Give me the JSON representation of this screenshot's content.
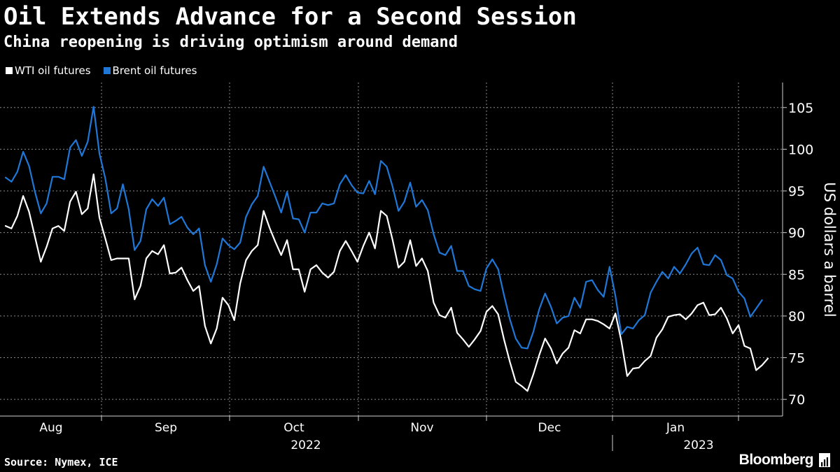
{
  "title": "Oil Extends Advance for a Second Session",
  "subtitle": "China reopening is driving optimism around demand",
  "colors": {
    "background": "#000000",
    "wti": "#ffffff",
    "brent": "#1f78d8",
    "grid": "#8a8a8a"
  },
  "footer": {
    "source": "Source: Nymex, ICE",
    "brand": "Bloomberg"
  },
  "chart_data": {
    "type": "line",
    "title": "Oil Extends Advance for a Second Session",
    "subtitle": "China reopening is driving optimism around demand",
    "xlabel": "",
    "ylabel": "US dollars a barrel",
    "ylim": [
      68,
      108
    ],
    "yticks": [
      70,
      75,
      80,
      85,
      90,
      95,
      100,
      105
    ],
    "grid": true,
    "legend_position": "top-left",
    "x_month_labels": [
      "Aug",
      "Sep",
      "Oct",
      "Nov",
      "Dec",
      "Jan"
    ],
    "x_year_labels": [
      "2022",
      "2023"
    ],
    "n_points": 126,
    "x_period": "2022-07-25 to 2023-01-19, daily trading sessions",
    "series": [
      {
        "name": "WTI oil futures",
        "color": "#ffffff",
        "values": [
          90.8,
          90.5,
          92.0,
          94.4,
          92.5,
          89.5,
          86.5,
          88.3,
          90.5,
          90.8,
          90.2,
          93.7,
          94.9,
          92.2,
          92.9,
          97.0,
          91.8,
          89.3,
          86.7,
          86.9,
          86.9,
          86.9,
          82.0,
          83.6,
          86.9,
          87.8,
          87.4,
          88.5,
          85.1,
          85.2,
          85.8,
          84.3,
          83.0,
          83.6,
          78.8,
          76.7,
          78.5,
          82.2,
          81.3,
          79.5,
          83.9,
          86.7,
          87.8,
          88.5,
          92.6,
          90.6,
          88.9,
          87.3,
          89.1,
          85.6,
          85.6,
          82.9,
          85.6,
          86.1,
          85.2,
          84.6,
          85.3,
          87.8,
          89.0,
          87.8,
          86.5,
          88.4,
          90.0,
          88.1,
          92.6,
          92.0,
          89.1,
          85.8,
          86.5,
          89.1,
          86.0,
          86.9,
          85.4,
          81.6,
          80.1,
          79.8,
          81.0,
          78.0,
          77.2,
          76.3,
          77.2,
          78.2,
          80.5,
          81.2,
          80.2,
          77.2,
          74.5,
          72.1,
          71.6,
          71.0,
          73.0,
          75.3,
          77.3,
          76.1,
          74.3,
          75.5,
          76.2,
          78.3,
          77.9,
          79.6,
          79.6,
          79.4,
          79.0,
          78.5,
          80.3,
          77.0,
          72.8,
          73.7,
          73.8,
          74.6,
          75.2,
          77.4,
          78.4,
          79.9,
          80.1,
          80.2,
          79.6,
          80.3,
          81.3,
          81.6,
          80.1,
          80.2,
          81.0,
          79.7,
          77.9,
          78.9,
          76.4,
          76.1,
          73.5,
          74.1,
          74.9
        ]
      },
      {
        "name": "Brent oil futures",
        "color": "#1f78d8",
        "values": [
          96.6,
          96.1,
          97.3,
          99.7,
          98.0,
          94.9,
          92.3,
          93.5,
          96.7,
          96.7,
          96.4,
          100.2,
          101.1,
          99.2,
          100.9,
          105.1,
          99.5,
          96.5,
          92.3,
          92.9,
          95.8,
          92.8,
          87.9,
          89.0,
          92.8,
          94.0,
          93.2,
          94.2,
          91.0,
          91.4,
          91.9,
          90.6,
          89.8,
          90.5,
          86.1,
          84.1,
          86.2,
          89.3,
          88.5,
          88.0,
          88.8,
          91.9,
          93.4,
          94.4,
          97.9,
          96.1,
          94.3,
          92.4,
          94.9,
          91.7,
          91.6,
          90.0,
          92.4,
          92.4,
          93.5,
          93.3,
          93.5,
          95.8,
          96.9,
          95.7,
          94.8,
          94.7,
          96.2,
          94.6,
          98.6,
          97.9,
          95.5,
          92.6,
          93.7,
          96.0,
          93.1,
          93.9,
          92.7,
          89.8,
          87.6,
          87.3,
          88.4,
          85.4,
          85.4,
          83.6,
          83.2,
          83.0,
          85.7,
          86.8,
          85.6,
          82.5,
          79.6,
          77.3,
          76.2,
          76.1,
          78.1,
          80.8,
          82.7,
          81.1,
          79.1,
          79.8,
          80.0,
          82.2,
          81.0,
          84.1,
          84.3,
          83.1,
          82.3,
          85.9,
          82.4,
          77.8,
          78.7,
          78.5,
          79.5,
          80.1,
          82.8,
          84.1,
          85.3,
          84.5,
          85.9,
          85.1,
          86.2,
          87.5,
          88.2,
          86.2,
          86.1,
          87.3,
          86.7,
          84.9,
          84.5,
          82.9,
          82.1,
          79.9,
          80.9,
          81.9
        ]
      }
    ]
  }
}
